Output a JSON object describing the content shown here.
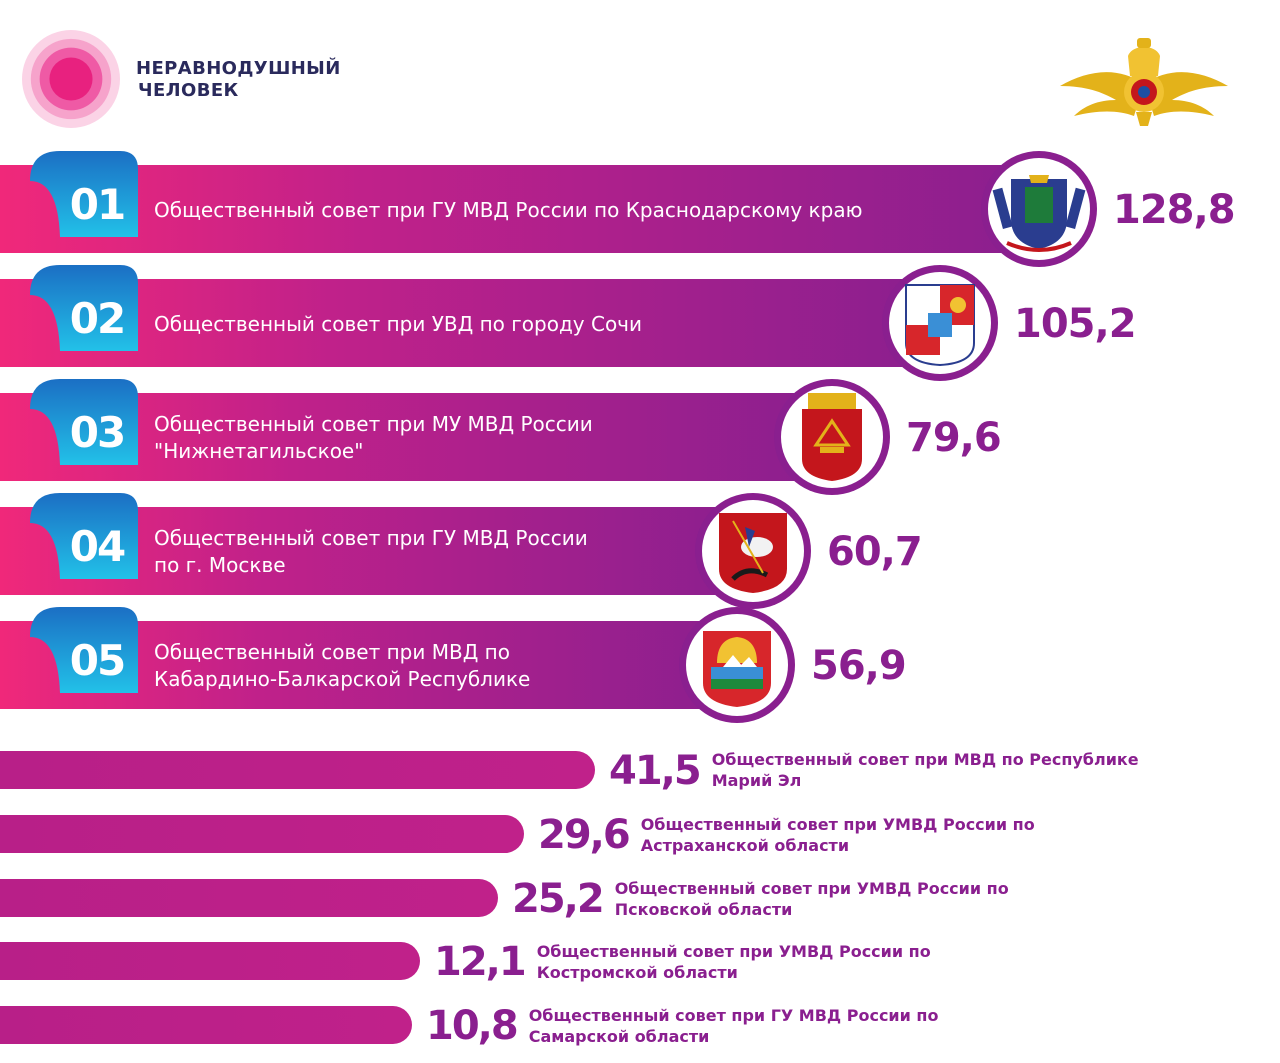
{
  "brand": {
    "name_line1": "НЕРАВНОДУШНЫЙ",
    "name_line2": "ЧЕЛОВЕК"
  },
  "colors": {
    "bar_start": "#f0287a",
    "bar_end": "#8a1f8f",
    "badge_top": "#1b6fc4",
    "badge_bottom": "#22c1e8",
    "value_text": "#8a1f8f",
    "brand_pink": "#e8217f"
  },
  "icons": [
    "brand-logo",
    "mvd-emblem",
    "krasnodar-coat-of-arms",
    "sochi-coat-of-arms",
    "nizhny-tagil-coat-of-arms",
    "moscow-coat-of-arms",
    "kbr-coat-of-arms"
  ],
  "chart_data": {
    "type": "bar",
    "orientation": "horizontal",
    "title": "",
    "xlabel": "",
    "ylabel": "",
    "categories": [
      "Общественный совет при ГУ МВД России по Краснодарскому краю",
      "Общественный совет при УВД по городу Сочи",
      "Общественный совет при МУ МВД России \"Нижнетагильское\"",
      "Общественный совет при ГУ МВД России по г. Москве",
      "Общественный совет при МВД по Кабардино-Балкарской Республике",
      "Общественный совет при МВД по Республике Марий Эл",
      "Общественный совет при УМВД России по Астраханской области",
      "Общественный совет при УМВД России по Псковской области",
      "Общественный совет при УМВД России по Костромской области",
      "Общественный совет при ГУ МВД России по Самарской области"
    ],
    "values": [
      128.8,
      105.2,
      79.6,
      60.7,
      56.9,
      41.5,
      29.6,
      25.2,
      12.1,
      10.8
    ],
    "value_labels": [
      "128,8",
      "105,2",
      "79,6",
      "60,7",
      "56,9",
      "41,5",
      "29,6",
      "25,2",
      "12,1",
      "10,8"
    ],
    "ranks": [
      "01",
      "02",
      "03",
      "04",
      "05"
    ],
    "label_lines": [
      [
        "Общественный совет при ГУ МВД России по Краснодарскому краю"
      ],
      [
        "Общественный совет при УВД по городу Сочи"
      ],
      [
        "Общественный совет при МУ МВД России",
        "\"Нижнетагильское\""
      ],
      [
        "Общественный совет при ГУ МВД России",
        "по г. Москве"
      ],
      [
        "Общественный совет при МВД по",
        "Кабардино-Балкарской Республике"
      ],
      [
        "Общественный совет при МВД по Республике",
        "Марий Эл"
      ],
      [
        "Общественный совет при УМВД России по",
        "Астраханской области"
      ],
      [
        "Общественный совет при УМВД России по",
        "Псковской области"
      ],
      [
        "Общественный совет при УМВД России по",
        "Костромской области"
      ],
      [
        "Общественный совет при ГУ МВД России по",
        "Самарской области"
      ]
    ],
    "grid": false,
    "legend": "none"
  }
}
